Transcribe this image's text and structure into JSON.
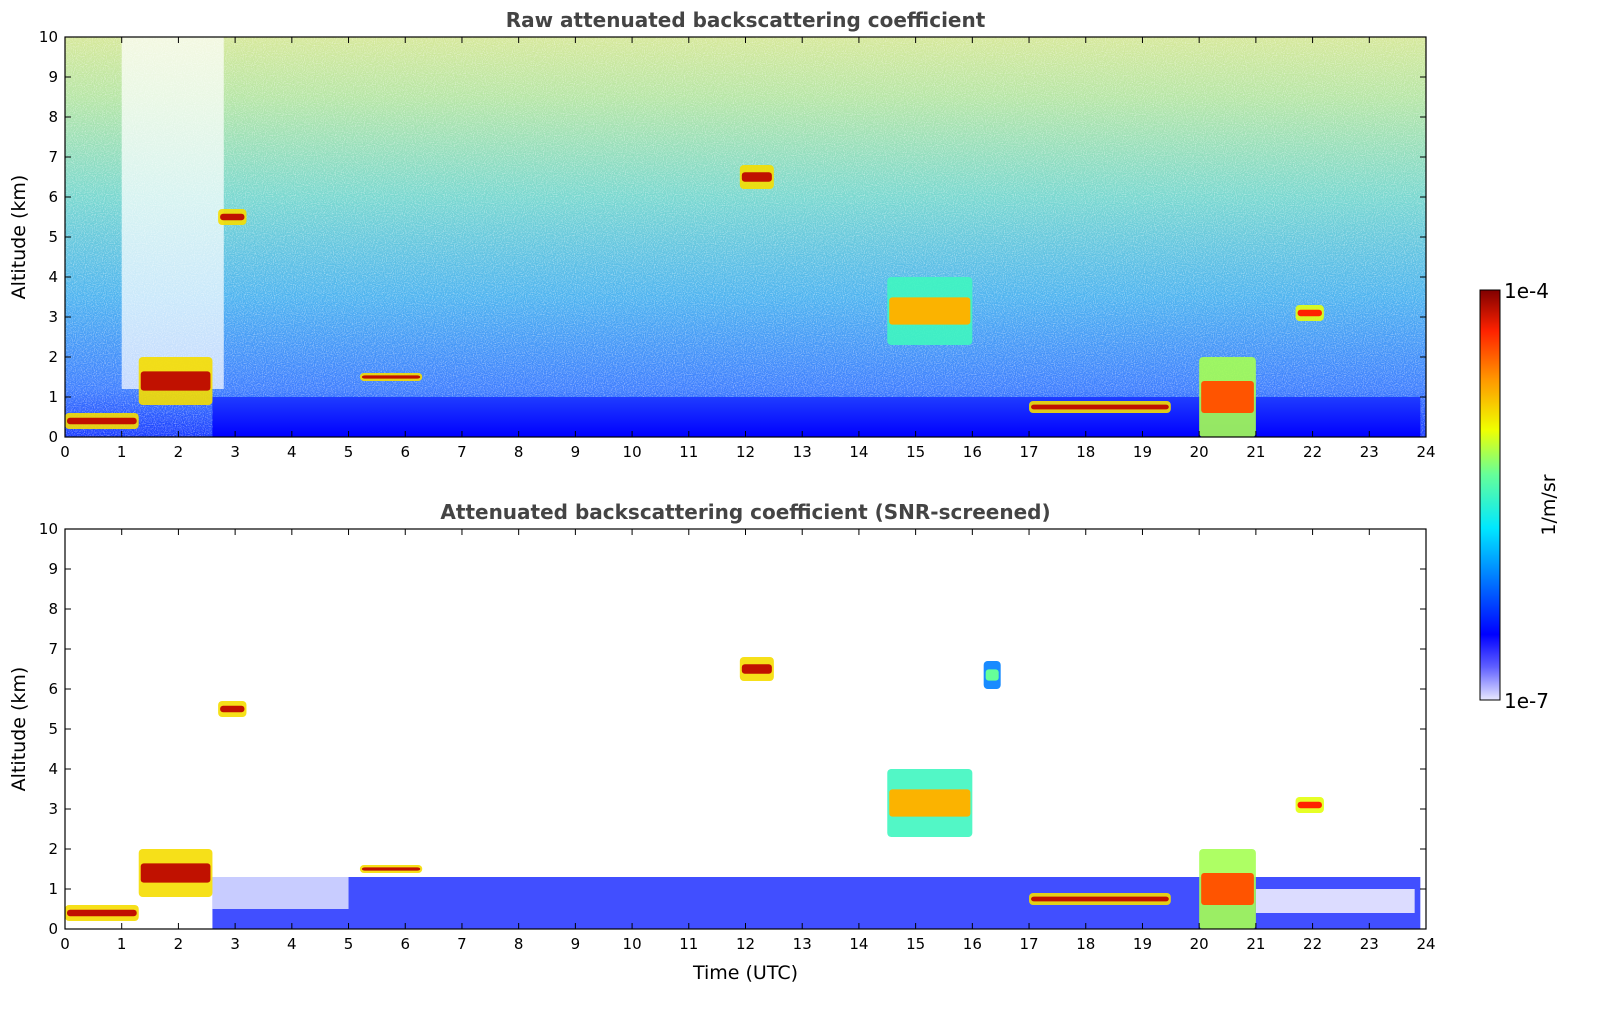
{
  "chart_data": [
    {
      "type": "heatmap",
      "title": "Raw attenuated backscattering coefficient",
      "xlabel": "",
      "ylabel": "Altitude (km)",
      "xlim": [
        0,
        24
      ],
      "ylim": [
        0,
        10
      ],
      "x_ticks": [
        "0",
        "1",
        "2",
        "3",
        "4",
        "5",
        "6",
        "7",
        "8",
        "9",
        "10",
        "11",
        "12",
        "13",
        "14",
        "15",
        "16",
        "17",
        "18",
        "19",
        "20",
        "21",
        "22",
        "23",
        "24"
      ],
      "y_ticks": [
        "0",
        "1",
        "2",
        "3",
        "4",
        "5",
        "6",
        "7",
        "8",
        "9",
        "10"
      ],
      "features": [
        {
          "time_start": 0.0,
          "time_end": 1.3,
          "alt_base": 0.2,
          "alt_top": 0.6,
          "level": 0.95
        },
        {
          "time_start": 1.3,
          "time_end": 2.6,
          "alt_base": 0.8,
          "alt_top": 2.0,
          "level": 0.95
        },
        {
          "time_start": 2.7,
          "time_end": 3.2,
          "alt_base": 5.3,
          "alt_top": 5.7,
          "level": 0.95
        },
        {
          "time_start": 5.2,
          "time_end": 6.3,
          "alt_base": 1.4,
          "alt_top": 1.6,
          "level": 0.95
        },
        {
          "time_start": 11.9,
          "time_end": 12.5,
          "alt_base": 6.2,
          "alt_top": 6.8,
          "level": 0.95
        },
        {
          "time_start": 14.5,
          "time_end": 16.0,
          "alt_base": 2.3,
          "alt_top": 4.0,
          "level": 0.75
        },
        {
          "time_start": 17.0,
          "time_end": 19.5,
          "alt_base": 0.6,
          "alt_top": 0.9,
          "level": 0.95
        },
        {
          "time_start": 20.0,
          "time_end": 21.0,
          "alt_base": 0.0,
          "alt_top": 2.0,
          "level": 0.85
        },
        {
          "time_start": 21.7,
          "time_end": 22.2,
          "alt_base": 2.9,
          "alt_top": 3.3,
          "level": 0.9
        }
      ]
    },
    {
      "type": "heatmap",
      "title": "Attenuated backscattering coefficient (SNR-screened)",
      "xlabel": "Time (UTC)",
      "ylabel": "Altitude (km)",
      "xlim": [
        0,
        24
      ],
      "ylim": [
        0,
        10
      ],
      "x_ticks": [
        "0",
        "1",
        "2",
        "3",
        "4",
        "5",
        "6",
        "7",
        "8",
        "9",
        "10",
        "11",
        "12",
        "13",
        "14",
        "15",
        "16",
        "17",
        "18",
        "19",
        "20",
        "21",
        "22",
        "23",
        "24"
      ],
      "y_ticks": [
        "0",
        "1",
        "2",
        "3",
        "4",
        "5",
        "6",
        "7",
        "8",
        "9",
        "10"
      ],
      "features": [
        {
          "time_start": 0.0,
          "time_end": 1.3,
          "alt_base": 0.2,
          "alt_top": 0.6,
          "level": 0.95
        },
        {
          "time_start": 1.3,
          "time_end": 2.6,
          "alt_base": 0.8,
          "alt_top": 2.0,
          "level": 0.95
        },
        {
          "time_start": 2.7,
          "time_end": 3.2,
          "alt_base": 5.3,
          "alt_top": 5.7,
          "level": 0.95
        },
        {
          "time_start": 5.2,
          "time_end": 6.3,
          "alt_base": 1.4,
          "alt_top": 1.6,
          "level": 0.95
        },
        {
          "time_start": 11.9,
          "time_end": 12.5,
          "alt_base": 6.2,
          "alt_top": 6.8,
          "level": 0.95
        },
        {
          "time_start": 14.5,
          "time_end": 16.0,
          "alt_base": 2.3,
          "alt_top": 4.0,
          "level": 0.75
        },
        {
          "time_start": 16.2,
          "time_end": 16.5,
          "alt_base": 6.0,
          "alt_top": 6.7,
          "level": 0.55
        },
        {
          "time_start": 17.0,
          "time_end": 19.5,
          "alt_base": 0.6,
          "alt_top": 0.9,
          "level": 0.95
        },
        {
          "time_start": 20.0,
          "time_end": 21.0,
          "alt_base": 0.0,
          "alt_top": 2.0,
          "level": 0.85
        },
        {
          "time_start": 21.7,
          "time_end": 22.2,
          "alt_base": 2.9,
          "alt_top": 3.3,
          "level": 0.9
        }
      ]
    }
  ],
  "colorbar": {
    "label": "1/m/sr",
    "max_label": "1e-4",
    "min_label": "1e-7",
    "colors": [
      "#ffffff",
      "#0000ff",
      "#00c8ff",
      "#33ffcc",
      "#ccff33",
      "#ffcc00",
      "#ff4400",
      "#800000"
    ]
  }
}
